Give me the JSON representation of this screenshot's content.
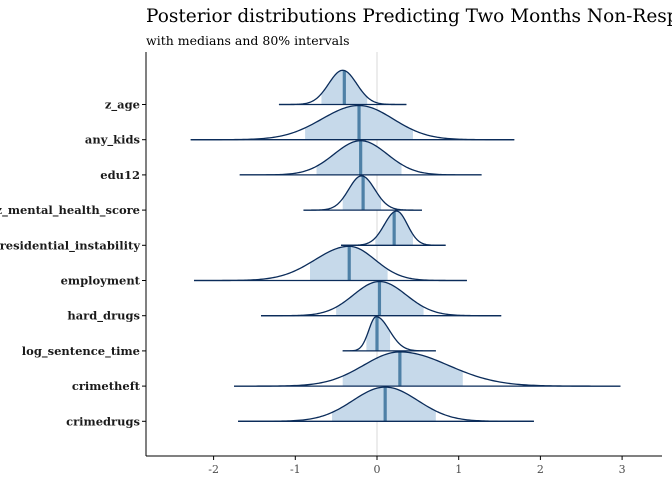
{
  "chart_data": {
    "type": "ridgeline",
    "title": "Posterior distributions Predicting Two Months Non-Response",
    "subtitle": "with medians and 80% intervals",
    "xlabel": "",
    "ylabel": "",
    "xlim": [
      -2.8,
      3.5
    ],
    "x_ticks": [
      -2,
      -1,
      0,
      1,
      2,
      3
    ],
    "reference_line": 0,
    "grid": false,
    "colors": {
      "fill": "#c6d9ea",
      "outline": "#0b2c5a",
      "median": "#4e80a6",
      "refline": "#d9d9d9",
      "axis": "#000000"
    },
    "series": [
      {
        "name": "z_age",
        "min": -1.2,
        "max": 0.36,
        "lo80": -0.68,
        "hi80": -0.12,
        "median": -0.4,
        "mode": -0.42,
        "peak": 0.95
      },
      {
        "name": "any_kids",
        "min": -2.28,
        "max": 1.68,
        "lo80": -0.88,
        "hi80": 0.44,
        "median": -0.22,
        "mode": -0.22,
        "peak": 0.95
      },
      {
        "name": "edu12",
        "min": -1.68,
        "max": 1.28,
        "lo80": -0.74,
        "hi80": 0.3,
        "median": -0.2,
        "mode": -0.2,
        "peak": 0.95
      },
      {
        "name": "z_mental_health_score",
        "min": -0.9,
        "max": 0.55,
        "lo80": -0.42,
        "hi80": 0.05,
        "median": -0.17,
        "mode": -0.19,
        "peak": 0.95
      },
      {
        "name": "z_residential_instability",
        "min": -0.44,
        "max": 0.84,
        "lo80": -0.02,
        "hi80": 0.44,
        "median": 0.21,
        "mode": 0.24,
        "peak": 0.95
      },
      {
        "name": "employment",
        "min": -2.24,
        "max": 1.1,
        "lo80": -0.82,
        "hi80": 0.13,
        "median": -0.34,
        "mode": -0.34,
        "peak": 0.95
      },
      {
        "name": "hard_drugs",
        "min": -1.42,
        "max": 1.52,
        "lo80": -0.5,
        "hi80": 0.57,
        "median": 0.03,
        "mode": 0.03,
        "peak": 0.95
      },
      {
        "name": "log_sentence_time",
        "min": -0.42,
        "max": 0.72,
        "lo80": -0.13,
        "hi80": 0.16,
        "median": 0.0,
        "mode": -0.01,
        "peak": 0.95
      },
      {
        "name": "crimetheft",
        "min": -1.75,
        "max": 2.98,
        "lo80": -0.42,
        "hi80": 1.05,
        "median": 0.28,
        "mode": 0.28,
        "peak": 0.95
      },
      {
        "name": "crimedrugs",
        "min": -1.7,
        "max": 1.92,
        "lo80": -0.55,
        "hi80": 0.72,
        "median": 0.1,
        "mode": 0.1,
        "peak": 0.95
      }
    ]
  }
}
